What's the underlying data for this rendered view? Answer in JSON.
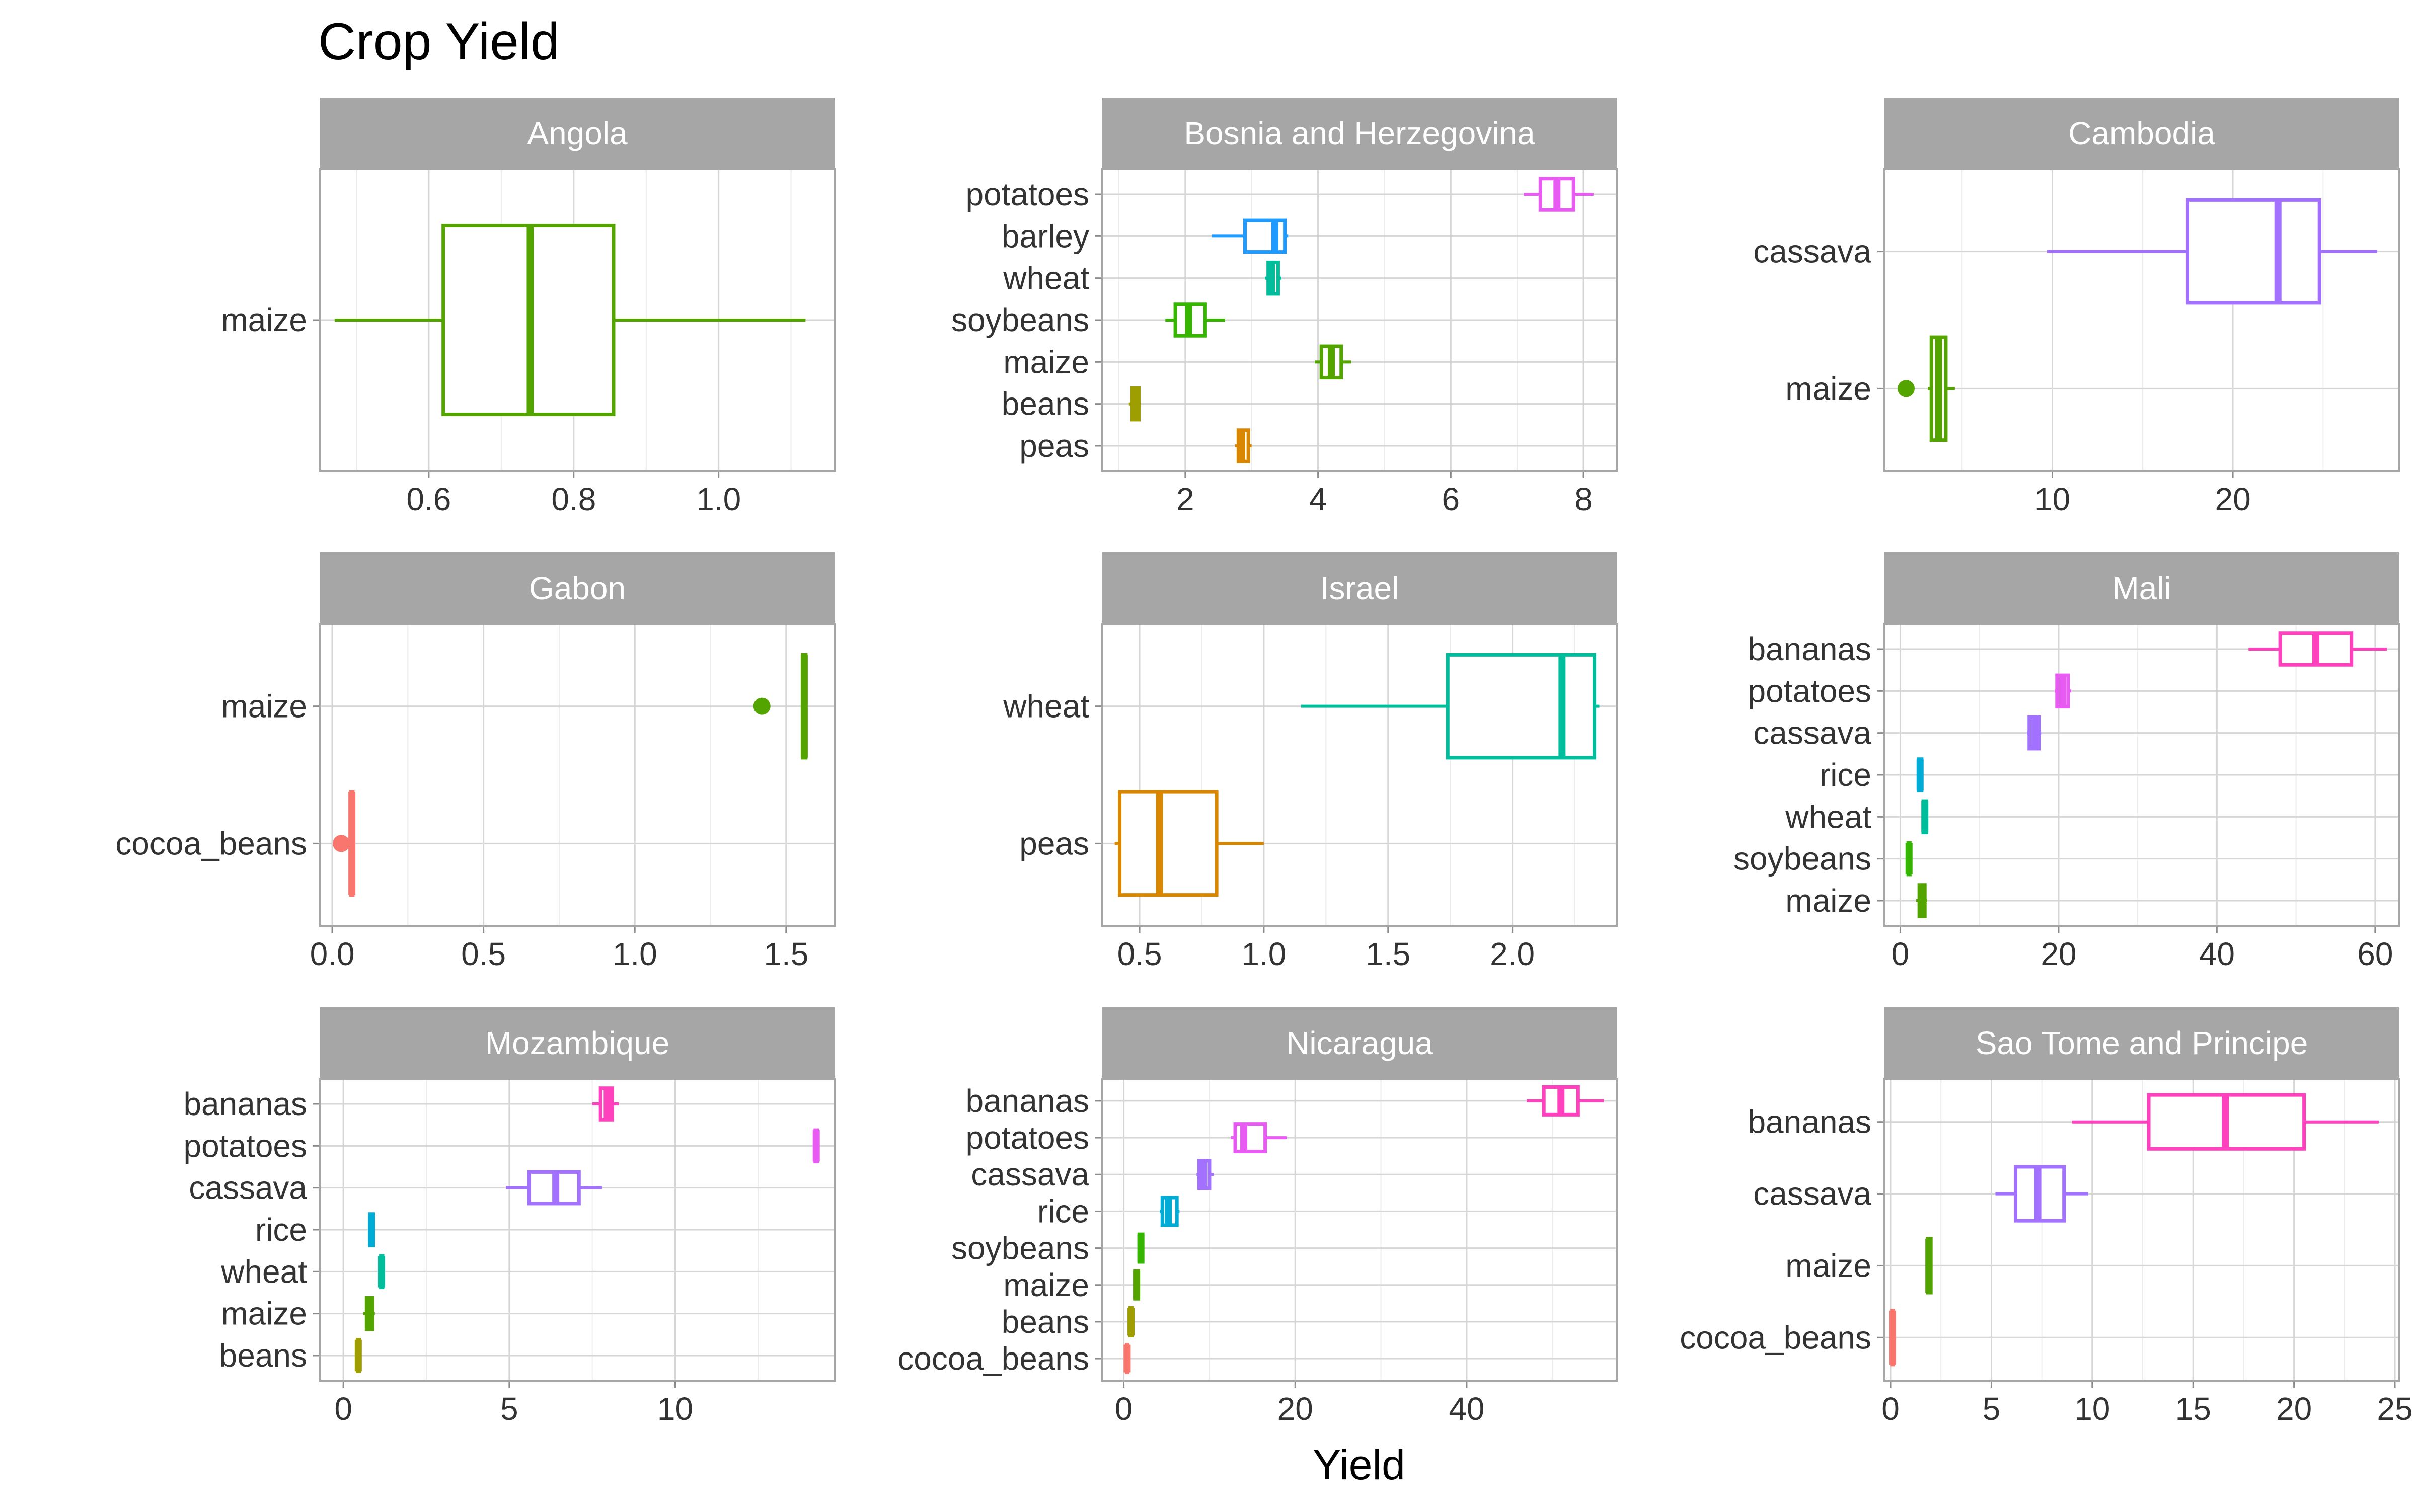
{
  "chart_data": {
    "type": "boxplot",
    "title": "Crop Yield",
    "xlabel": "Yield",
    "ylabel": "",
    "crop_colors": {
      "bananas": "#FF41BE",
      "potatoes": "#E85BF2",
      "cassava": "#A371FF",
      "barley": "#1F9BFF",
      "rice": "#00ACD6",
      "wheat": "#00BD9C",
      "soybeans": "#36B500",
      "maize": "#54A400",
      "beans": "#9F9E00",
      "peas": "#D98600",
      "cocoa_beans": "#F8766D"
    },
    "panels": [
      {
        "country": "Angola",
        "xlim": [
          0.45,
          1.16
        ],
        "xticks": [
          0.6,
          0.8,
          1.0
        ],
        "xtick_labels": [
          "0.6",
          "0.8",
          "1.0"
        ],
        "categories": [
          "maize"
        ],
        "boxes": [
          {
            "crop": "maize",
            "min": 0.47,
            "q1": 0.62,
            "median": 0.74,
            "q3": 0.855,
            "max": 1.12,
            "outliers": []
          }
        ]
      },
      {
        "country": "Bosnia and Herzegovina",
        "xlim": [
          0.75,
          8.5
        ],
        "xticks": [
          2,
          4,
          6,
          8
        ],
        "xtick_labels": [
          "2",
          "4",
          "6",
          "8"
        ],
        "categories": [
          "potatoes",
          "barley",
          "wheat",
          "soybeans",
          "maize",
          "beans",
          "peas"
        ],
        "boxes": [
          {
            "crop": "potatoes",
            "min": 7.1,
            "q1": 7.35,
            "median": 7.6,
            "q3": 7.85,
            "max": 8.15,
            "outliers": []
          },
          {
            "crop": "barley",
            "min": 2.4,
            "q1": 2.9,
            "median": 3.35,
            "q3": 3.5,
            "max": 3.55,
            "outliers": []
          },
          {
            "crop": "wheat",
            "min": 3.2,
            "q1": 3.25,
            "median": 3.3,
            "q3": 3.4,
            "max": 3.45,
            "outliers": []
          },
          {
            "crop": "soybeans",
            "min": 1.7,
            "q1": 1.85,
            "median": 2.05,
            "q3": 2.3,
            "max": 2.6,
            "outliers": []
          },
          {
            "crop": "maize",
            "min": 3.95,
            "q1": 4.05,
            "median": 4.2,
            "q3": 4.35,
            "max": 4.5,
            "outliers": []
          },
          {
            "crop": "beans",
            "min": 1.15,
            "q1": 1.2,
            "median": 1.25,
            "q3": 1.3,
            "max": 1.33,
            "outliers": []
          },
          {
            "crop": "peas",
            "min": 2.75,
            "q1": 2.8,
            "median": 2.85,
            "q3": 2.95,
            "max": 3.0,
            "outliers": []
          }
        ]
      },
      {
        "country": "Cambodia",
        "xlim": [
          0.7,
          29.2
        ],
        "xticks": [
          10,
          20
        ],
        "xtick_labels": [
          "10",
          "20"
        ],
        "categories": [
          "cassava",
          "maize"
        ],
        "boxes": [
          {
            "crop": "cassava",
            "min": 9.7,
            "q1": 17.5,
            "median": 22.5,
            "q3": 24.8,
            "max": 28.0,
            "outliers": []
          },
          {
            "crop": "maize",
            "min": 3.1,
            "q1": 3.3,
            "median": 3.7,
            "q3": 4.1,
            "max": 4.6,
            "outliers": [
              1.9
            ]
          }
        ]
      },
      {
        "country": "Gabon",
        "xlim": [
          -0.04,
          1.66
        ],
        "xticks": [
          0.0,
          0.5,
          1.0,
          1.5
        ],
        "xtick_labels": [
          "0.0",
          "0.5",
          "1.0",
          "1.5"
        ],
        "categories": [
          "maize",
          "cocoa_beans"
        ],
        "boxes": [
          {
            "crop": "maize",
            "min": 1.55,
            "q1": 1.555,
            "median": 1.56,
            "q3": 1.565,
            "max": 1.57,
            "outliers": [
              1.42
            ]
          },
          {
            "crop": "cocoa_beans",
            "min": 0.06,
            "q1": 0.062,
            "median": 0.065,
            "q3": 0.068,
            "max": 0.07,
            "outliers": [
              0.03
            ]
          }
        ]
      },
      {
        "country": "Israel",
        "xlim": [
          0.35,
          2.42
        ],
        "xticks": [
          0.5,
          1.0,
          1.5,
          2.0
        ],
        "xtick_labels": [
          "0.5",
          "1.0",
          "1.5",
          "2.0"
        ],
        "categories": [
          "wheat",
          "peas"
        ],
        "boxes": [
          {
            "crop": "wheat",
            "min": 1.15,
            "q1": 1.74,
            "median": 2.2,
            "q3": 2.33,
            "max": 2.35,
            "outliers": []
          },
          {
            "crop": "peas",
            "min": 0.4,
            "q1": 0.42,
            "median": 0.58,
            "q3": 0.81,
            "max": 1.0,
            "outliers": []
          }
        ]
      },
      {
        "country": "Mali",
        "xlim": [
          -2.0,
          63.0
        ],
        "xticks": [
          0,
          20,
          40,
          60
        ],
        "xtick_labels": [
          "0",
          "20",
          "40",
          "60"
        ],
        "categories": [
          "bananas",
          "potatoes",
          "cassava",
          "rice",
          "wheat",
          "soybeans",
          "maize"
        ],
        "boxes": [
          {
            "crop": "bananas",
            "min": 44.0,
            "q1": 48.0,
            "median": 52.5,
            "q3": 57.0,
            "max": 61.5,
            "outliers": []
          },
          {
            "crop": "potatoes",
            "min": 19.5,
            "q1": 19.8,
            "median": 20.5,
            "q3": 21.2,
            "max": 21.6,
            "outliers": []
          },
          {
            "crop": "cassava",
            "min": 16.0,
            "q1": 16.3,
            "median": 17.0,
            "q3": 17.5,
            "max": 17.8,
            "outliers": []
          },
          {
            "crop": "rice",
            "min": 2.2,
            "q1": 2.3,
            "median": 2.5,
            "q3": 2.7,
            "max": 2.8,
            "outliers": []
          },
          {
            "crop": "wheat",
            "min": 2.8,
            "q1": 2.9,
            "median": 3.1,
            "q3": 3.3,
            "max": 3.4,
            "outliers": []
          },
          {
            "crop": "soybeans",
            "min": 0.9,
            "q1": 1.0,
            "median": 1.1,
            "q3": 1.2,
            "max": 1.3,
            "outliers": []
          },
          {
            "crop": "maize",
            "min": 2.0,
            "q1": 2.4,
            "median": 2.8,
            "q3": 3.1,
            "max": 3.4,
            "outliers": []
          }
        ]
      },
      {
        "country": "Mozambique",
        "xlim": [
          -0.7,
          14.8
        ],
        "xticks": [
          0,
          5,
          10
        ],
        "xtick_labels": [
          "0",
          "5",
          "10"
        ],
        "categories": [
          "bananas",
          "potatoes",
          "cassava",
          "rice",
          "wheat",
          "maize",
          "beans"
        ],
        "boxes": [
          {
            "crop": "bananas",
            "min": 7.5,
            "q1": 7.75,
            "median": 7.95,
            "q3": 8.1,
            "max": 8.3,
            "outliers": []
          },
          {
            "crop": "potatoes",
            "min": 14.2,
            "q1": 14.22,
            "median": 14.25,
            "q3": 14.28,
            "max": 14.3,
            "outliers": []
          },
          {
            "crop": "cassava",
            "min": 4.9,
            "q1": 5.6,
            "median": 6.4,
            "q3": 7.1,
            "max": 7.8,
            "outliers": []
          },
          {
            "crop": "rice",
            "min": 0.75,
            "q1": 0.8,
            "median": 0.85,
            "q3": 0.9,
            "max": 0.95,
            "outliers": []
          },
          {
            "crop": "wheat",
            "min": 1.1,
            "q1": 1.13,
            "median": 1.15,
            "q3": 1.18,
            "max": 1.2,
            "outliers": []
          },
          {
            "crop": "maize",
            "min": 0.6,
            "q1": 0.7,
            "median": 0.8,
            "q3": 0.88,
            "max": 0.95,
            "outliers": []
          },
          {
            "crop": "beans",
            "min": 0.4,
            "q1": 0.43,
            "median": 0.45,
            "q3": 0.48,
            "max": 0.5,
            "outliers": []
          }
        ]
      },
      {
        "country": "Nicaragua",
        "xlim": [
          -2.5,
          57.5
        ],
        "xticks": [
          0,
          20,
          40
        ],
        "xtick_labels": [
          "0",
          "20",
          "40"
        ],
        "categories": [
          "bananas",
          "potatoes",
          "cassava",
          "rice",
          "soybeans",
          "maize",
          "beans",
          "cocoa_beans"
        ],
        "boxes": [
          {
            "crop": "bananas",
            "min": 47.0,
            "q1": 49.0,
            "median": 51.0,
            "q3": 53.0,
            "max": 56.0,
            "outliers": []
          },
          {
            "crop": "potatoes",
            "min": 12.5,
            "q1": 13.0,
            "median": 14.0,
            "q3": 16.5,
            "max": 19.0,
            "outliers": []
          },
          {
            "crop": "cassava",
            "min": 8.5,
            "q1": 8.8,
            "median": 9.3,
            "q3": 10.0,
            "max": 10.5,
            "outliers": []
          },
          {
            "crop": "rice",
            "min": 4.2,
            "q1": 4.5,
            "median": 5.2,
            "q3": 6.2,
            "max": 6.5,
            "outliers": []
          },
          {
            "crop": "soybeans",
            "min": 1.7,
            "q1": 1.8,
            "median": 2.0,
            "q3": 2.2,
            "max": 2.3,
            "outliers": []
          },
          {
            "crop": "maize",
            "min": 1.2,
            "q1": 1.3,
            "median": 1.5,
            "q3": 1.7,
            "max": 1.8,
            "outliers": []
          },
          {
            "crop": "beans",
            "min": 0.7,
            "q1": 0.75,
            "median": 0.85,
            "q3": 0.95,
            "max": 1.0,
            "outliers": []
          },
          {
            "crop": "cocoa_beans",
            "min": 0.3,
            "q1": 0.35,
            "median": 0.4,
            "q3": 0.45,
            "max": 0.5,
            "outliers": []
          }
        ]
      },
      {
        "country": "Sao Tome and Principe",
        "xlim": [
          -0.3,
          25.2
        ],
        "xticks": [
          0,
          5,
          10,
          15,
          20,
          25
        ],
        "xtick_labels": [
          "0",
          "5",
          "10",
          "15",
          "20",
          "25"
        ],
        "categories": [
          "bananas",
          "cassava",
          "maize",
          "cocoa_beans"
        ],
        "boxes": [
          {
            "crop": "bananas",
            "min": 9.0,
            "q1": 12.8,
            "median": 16.6,
            "q3": 20.5,
            "max": 24.2,
            "outliers": []
          },
          {
            "crop": "cassava",
            "min": 5.2,
            "q1": 6.2,
            "median": 7.3,
            "q3": 8.6,
            "max": 9.8,
            "outliers": []
          },
          {
            "crop": "maize",
            "min": 1.8,
            "q1": 1.85,
            "median": 1.9,
            "q3": 2.0,
            "max": 2.05,
            "outliers": []
          },
          {
            "crop": "cocoa_beans",
            "min": 0.05,
            "q1": 0.07,
            "median": 0.1,
            "q3": 0.13,
            "max": 0.15,
            "outliers": []
          }
        ]
      }
    ]
  }
}
